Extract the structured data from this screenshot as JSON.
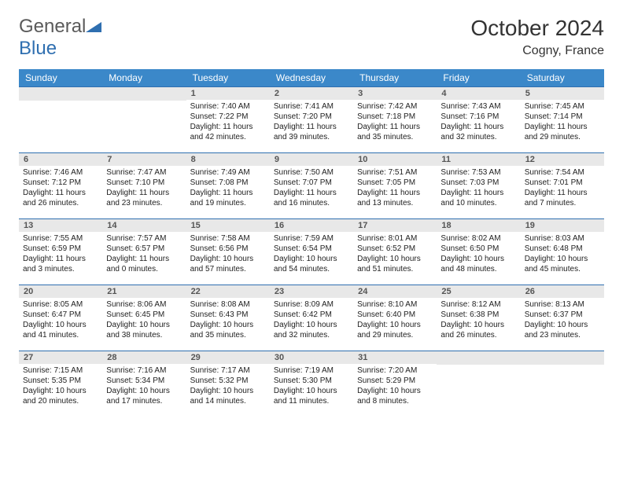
{
  "logo": {
    "part1": "General",
    "part2": "Blue"
  },
  "header": {
    "title": "October 2024",
    "location": "Cogny, France"
  },
  "colors": {
    "header_bg": "#3b88c9",
    "header_text": "#ffffff",
    "cell_border": "#2f6fb0",
    "daynum_bg": "#e8e8e8",
    "daynum_text": "#555555",
    "body_text": "#222222",
    "logo_gray": "#5a5a5a",
    "logo_blue": "#2f6fb0"
  },
  "weekdays": [
    "Sunday",
    "Monday",
    "Tuesday",
    "Wednesday",
    "Thursday",
    "Friday",
    "Saturday"
  ],
  "layout": {
    "first_weekday_index": 2,
    "days_in_month": 31
  },
  "days": {
    "1": {
      "sunrise": "7:40 AM",
      "sunset": "7:22 PM",
      "daylight": "11 hours and 42 minutes."
    },
    "2": {
      "sunrise": "7:41 AM",
      "sunset": "7:20 PM",
      "daylight": "11 hours and 39 minutes."
    },
    "3": {
      "sunrise": "7:42 AM",
      "sunset": "7:18 PM",
      "daylight": "11 hours and 35 minutes."
    },
    "4": {
      "sunrise": "7:43 AM",
      "sunset": "7:16 PM",
      "daylight": "11 hours and 32 minutes."
    },
    "5": {
      "sunrise": "7:45 AM",
      "sunset": "7:14 PM",
      "daylight": "11 hours and 29 minutes."
    },
    "6": {
      "sunrise": "7:46 AM",
      "sunset": "7:12 PM",
      "daylight": "11 hours and 26 minutes."
    },
    "7": {
      "sunrise": "7:47 AM",
      "sunset": "7:10 PM",
      "daylight": "11 hours and 23 minutes."
    },
    "8": {
      "sunrise": "7:49 AM",
      "sunset": "7:08 PM",
      "daylight": "11 hours and 19 minutes."
    },
    "9": {
      "sunrise": "7:50 AM",
      "sunset": "7:07 PM",
      "daylight": "11 hours and 16 minutes."
    },
    "10": {
      "sunrise": "7:51 AM",
      "sunset": "7:05 PM",
      "daylight": "11 hours and 13 minutes."
    },
    "11": {
      "sunrise": "7:53 AM",
      "sunset": "7:03 PM",
      "daylight": "11 hours and 10 minutes."
    },
    "12": {
      "sunrise": "7:54 AM",
      "sunset": "7:01 PM",
      "daylight": "11 hours and 7 minutes."
    },
    "13": {
      "sunrise": "7:55 AM",
      "sunset": "6:59 PM",
      "daylight": "11 hours and 3 minutes."
    },
    "14": {
      "sunrise": "7:57 AM",
      "sunset": "6:57 PM",
      "daylight": "11 hours and 0 minutes."
    },
    "15": {
      "sunrise": "7:58 AM",
      "sunset": "6:56 PM",
      "daylight": "10 hours and 57 minutes."
    },
    "16": {
      "sunrise": "7:59 AM",
      "sunset": "6:54 PM",
      "daylight": "10 hours and 54 minutes."
    },
    "17": {
      "sunrise": "8:01 AM",
      "sunset": "6:52 PM",
      "daylight": "10 hours and 51 minutes."
    },
    "18": {
      "sunrise": "8:02 AM",
      "sunset": "6:50 PM",
      "daylight": "10 hours and 48 minutes."
    },
    "19": {
      "sunrise": "8:03 AM",
      "sunset": "6:48 PM",
      "daylight": "10 hours and 45 minutes."
    },
    "20": {
      "sunrise": "8:05 AM",
      "sunset": "6:47 PM",
      "daylight": "10 hours and 41 minutes."
    },
    "21": {
      "sunrise": "8:06 AM",
      "sunset": "6:45 PM",
      "daylight": "10 hours and 38 minutes."
    },
    "22": {
      "sunrise": "8:08 AM",
      "sunset": "6:43 PM",
      "daylight": "10 hours and 35 minutes."
    },
    "23": {
      "sunrise": "8:09 AM",
      "sunset": "6:42 PM",
      "daylight": "10 hours and 32 minutes."
    },
    "24": {
      "sunrise": "8:10 AM",
      "sunset": "6:40 PM",
      "daylight": "10 hours and 29 minutes."
    },
    "25": {
      "sunrise": "8:12 AM",
      "sunset": "6:38 PM",
      "daylight": "10 hours and 26 minutes."
    },
    "26": {
      "sunrise": "8:13 AM",
      "sunset": "6:37 PM",
      "daylight": "10 hours and 23 minutes."
    },
    "27": {
      "sunrise": "7:15 AM",
      "sunset": "5:35 PM",
      "daylight": "10 hours and 20 minutes."
    },
    "28": {
      "sunrise": "7:16 AM",
      "sunset": "5:34 PM",
      "daylight": "10 hours and 17 minutes."
    },
    "29": {
      "sunrise": "7:17 AM",
      "sunset": "5:32 PM",
      "daylight": "10 hours and 14 minutes."
    },
    "30": {
      "sunrise": "7:19 AM",
      "sunset": "5:30 PM",
      "daylight": "10 hours and 11 minutes."
    },
    "31": {
      "sunrise": "7:20 AM",
      "sunset": "5:29 PM",
      "daylight": "10 hours and 8 minutes."
    }
  },
  "labels": {
    "sunrise": "Sunrise:",
    "sunset": "Sunset:",
    "daylight": "Daylight:"
  }
}
